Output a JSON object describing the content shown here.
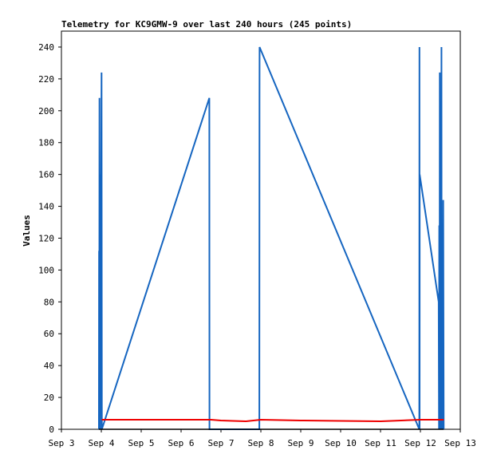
{
  "chart_data": {
    "type": "line",
    "title": "Telemetry for KC9GMW-9 over last 240 hours (245 points)",
    "xlabel": "",
    "ylabel": "Values",
    "xlim": [
      "Sep 3",
      "Sep 13"
    ],
    "ylim": [
      0,
      250
    ],
    "x_ticks": [
      "Sep 3",
      "Sep 4",
      "Sep 5",
      "Sep 6",
      "Sep 7",
      "Sep 8",
      "Sep 9",
      "Sep 10",
      "Sep 11",
      "Sep 12",
      "Sep 13"
    ],
    "y_ticks": [
      0,
      20,
      40,
      60,
      80,
      100,
      120,
      140,
      160,
      180,
      200,
      220,
      240
    ],
    "grid": false,
    "colors": {
      "series_blue": "#1565c0",
      "series_red": "#ee0000",
      "series_black": "#000000"
    },
    "series": [
      {
        "color": "#1565c0",
        "points": [
          [
            "Sep 3 22:35",
            0
          ],
          [
            "Sep 3 22:40",
            112
          ],
          [
            "Sep 3 22:45",
            0
          ],
          [
            "Sep 3 22:55",
            208
          ],
          [
            "Sep 3 23:00",
            0
          ],
          [
            "Sep 3 23:10",
            160
          ],
          [
            "Sep 3 23:20",
            0
          ],
          [
            "Sep 4 00:10",
            224
          ],
          [
            "Sep 4 00:20",
            0
          ],
          [
            "Sep 6 17:00",
            208
          ],
          [
            "Sep 6 17:05",
            0
          ],
          [
            "Sep 7 23:05",
            0
          ],
          [
            "Sep 7 23:10",
            208
          ],
          [
            "Sep 7 23:15",
            240
          ],
          [
            "Sep 11 23:20",
            0
          ],
          [
            "Sep 11 23:25",
            240
          ],
          [
            "Sep 11 23:30",
            0
          ],
          [
            "Sep 11 23:35",
            160
          ],
          [
            "Sep 12 11:00",
            80
          ],
          [
            "Sep 12 11:10",
            0
          ],
          [
            "Sep 12 11:20",
            128
          ],
          [
            "Sep 12 11:30",
            0
          ],
          [
            "Sep 12 11:40",
            224
          ],
          [
            "Sep 12 11:50",
            0
          ],
          [
            "Sep 12 12:00",
            192
          ],
          [
            "Sep 12 12:10",
            0
          ],
          [
            "Sep 12 12:20",
            80
          ],
          [
            "Sep 12 12:30",
            0
          ],
          [
            "Sep 12 12:40",
            240
          ],
          [
            "Sep 12 12:50",
            0
          ],
          [
            "Sep 12 13:00",
            96
          ],
          [
            "Sep 12 13:10",
            0
          ],
          [
            "Sep 12 13:20",
            128
          ],
          [
            "Sep 12 13:30",
            0
          ],
          [
            "Sep 12 13:45",
            144
          ],
          [
            "Sep 12 14:00",
            0
          ]
        ]
      },
      {
        "color": "#ee0000",
        "points": [
          [
            "Sep 4 00:15",
            6
          ],
          [
            "Sep 6 18:00",
            6
          ],
          [
            "Sep 7 00:00",
            5.5
          ],
          [
            "Sep 7 15:00",
            5
          ],
          [
            "Sep 8 00:00",
            6
          ],
          [
            "Sep 9 00:00",
            5.5
          ],
          [
            "Sep 11 00:00",
            5
          ],
          [
            "Sep 12 00:00",
            6
          ],
          [
            "Sep 12 14:00",
            6
          ]
        ]
      },
      {
        "color": "#000000",
        "points": [
          [
            "Sep 3 22:30",
            0
          ],
          [
            "Sep 12 14:00",
            0
          ]
        ]
      }
    ]
  }
}
